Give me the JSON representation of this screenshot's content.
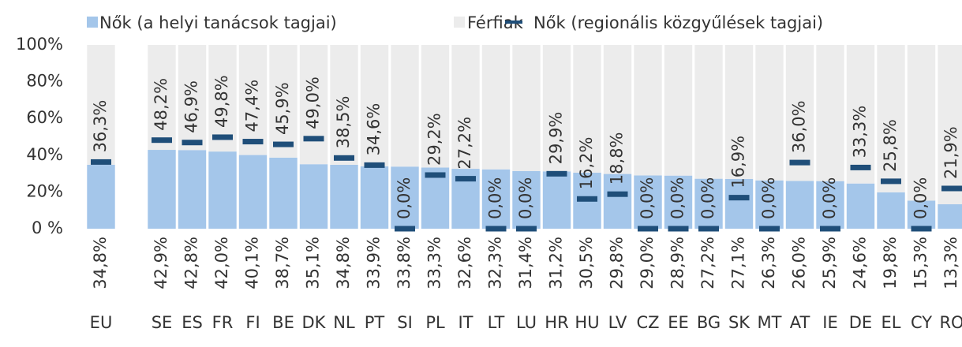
{
  "chart_data": {
    "type": "bar",
    "stacked": true,
    "categories": [
      "EU",
      null,
      "SE",
      "ES",
      "FR",
      "FI",
      "BE",
      "DK",
      "NL",
      "PT",
      "SI",
      "PL",
      "IT",
      "LT",
      "LU",
      "HR",
      "HU",
      "LV",
      "CZ",
      "EE",
      "BG",
      "SK",
      "MT",
      "AT",
      "IE",
      "DE",
      "EL",
      "CY",
      "RO"
    ],
    "series": [
      {
        "name": "Nők (a helyi tanácsok tagjai)",
        "type": "bar",
        "color": "#a4c6ea",
        "values": [
          34.8,
          null,
          42.9,
          42.8,
          42.0,
          40.1,
          38.7,
          35.1,
          34.8,
          33.9,
          33.8,
          33.3,
          32.6,
          32.3,
          31.4,
          31.2,
          30.5,
          29.8,
          29.0,
          28.9,
          27.2,
          27.1,
          26.3,
          26.0,
          25.9,
          24.6,
          19.8,
          15.3,
          13.3
        ],
        "value_labels": [
          "34,8%",
          null,
          "42,9%",
          "42,8%",
          "42,0%",
          "40,1%",
          "38,7%",
          "35,1%",
          "34,8%",
          "33,9%",
          "33,8%",
          "33,3%",
          "32,6%",
          "32,3%",
          "31,4%",
          "31,2%",
          "30,5%",
          "29,8%",
          "29,0%",
          "28,9%",
          "27,2%",
          "27,1%",
          "26,3%",
          "26,0%",
          "25,9%",
          "24,6%",
          "19,8%",
          "15,3%",
          "13,3%"
        ]
      },
      {
        "name": "Férfiak",
        "type": "bar",
        "color": "#ececec",
        "values": [
          65.2,
          null,
          57.1,
          57.2,
          58.0,
          59.9,
          61.3,
          64.9,
          65.2,
          66.1,
          66.2,
          66.7,
          67.4,
          67.7,
          68.6,
          68.8,
          69.5,
          70.2,
          71.0,
          71.1,
          72.8,
          72.9,
          73.7,
          74.0,
          74.1,
          75.4,
          80.2,
          84.7,
          86.7
        ]
      },
      {
        "name": "Nők (regionális közgyűlések tagjai)",
        "type": "line",
        "color": "#1f4e79",
        "values": [
          36.3,
          null,
          48.2,
          46.9,
          49.8,
          47.4,
          45.9,
          49.0,
          38.5,
          34.6,
          0.0,
          29.2,
          27.2,
          0.0,
          0.0,
          29.9,
          16.2,
          18.8,
          0.0,
          0.0,
          0.0,
          16.9,
          0.0,
          36.0,
          0.0,
          33.3,
          25.8,
          0.0,
          21.9
        ],
        "value_labels": [
          "36,3%",
          null,
          "48,2%",
          "46,9%",
          "49,8%",
          "47,4%",
          "45,9%",
          "49,0%",
          "38,5%",
          "34,6%",
          "0,0%",
          "29,2%",
          "27,2%",
          "0,0%",
          "0,0%",
          "29,9%",
          "16,2%",
          "18,8%",
          "0,0%",
          "0,0%",
          "0,0%",
          "16,9%",
          "0,0%",
          "36,0%",
          "0,0%",
          "33,3%",
          "25,8%",
          "0,0%",
          "21,9%"
        ]
      }
    ],
    "ylim": [
      0,
      100
    ],
    "yticks": [
      {
        "value": 0,
        "label": "0 %"
      },
      {
        "value": 20,
        "label": "20%"
      },
      {
        "value": 40,
        "label": "40%"
      },
      {
        "value": 60,
        "label": "60%"
      },
      {
        "value": 80,
        "label": "80%"
      },
      {
        "value": 100,
        "label": "100%"
      }
    ],
    "legend": "top"
  }
}
